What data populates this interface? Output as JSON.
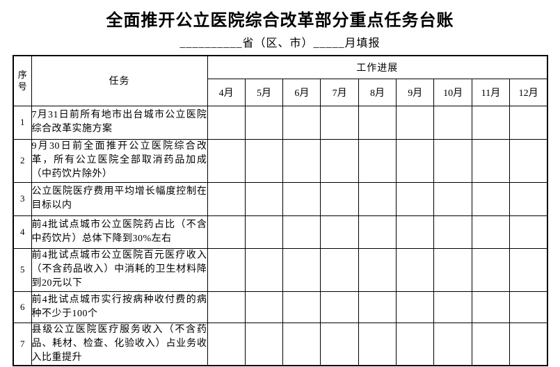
{
  "page": {
    "title": "全面推开公立医院综合改革部分重点任务台账",
    "subtitle": "__________省（区、市）_____月填报"
  },
  "table": {
    "serial_header": "序号",
    "task_header": "任务",
    "progress_header": "工作进展",
    "months": [
      "4月",
      "5月",
      "6月",
      "7月",
      "8月",
      "9月",
      "10月",
      "11月",
      "12月"
    ],
    "rows": [
      {
        "no": "1",
        "task": "7月31日前所有地市出台城市公立医院综合改革实施方案"
      },
      {
        "no": "2",
        "task": "9月30日前全面推开公立医院综合改革，所有公立医院全部取消药品加成（中药饮片除外）"
      },
      {
        "no": "3",
        "task": "公立医院医疗费用平均增长幅度控制在目标以内"
      },
      {
        "no": "4",
        "task": "前4批试点城市公立医院药占比（不含中药饮片）总体下降到30%左右"
      },
      {
        "no": "5",
        "task": "前4批试点城市公立医院百元医疗收入（不含药品收入）中消耗的卫生材料降到20元以下"
      },
      {
        "no": "6",
        "task": "前4批试点城市实行按病种收付费的病种不少于100个"
      },
      {
        "no": "7",
        "task": "县级公立医院医疗服务收入（不含药品、耗材、检查、化验收入）占业务收入比重提升"
      }
    ]
  },
  "colors": {
    "text": "#000000",
    "border": "#000000",
    "background": "#ffffff"
  }
}
